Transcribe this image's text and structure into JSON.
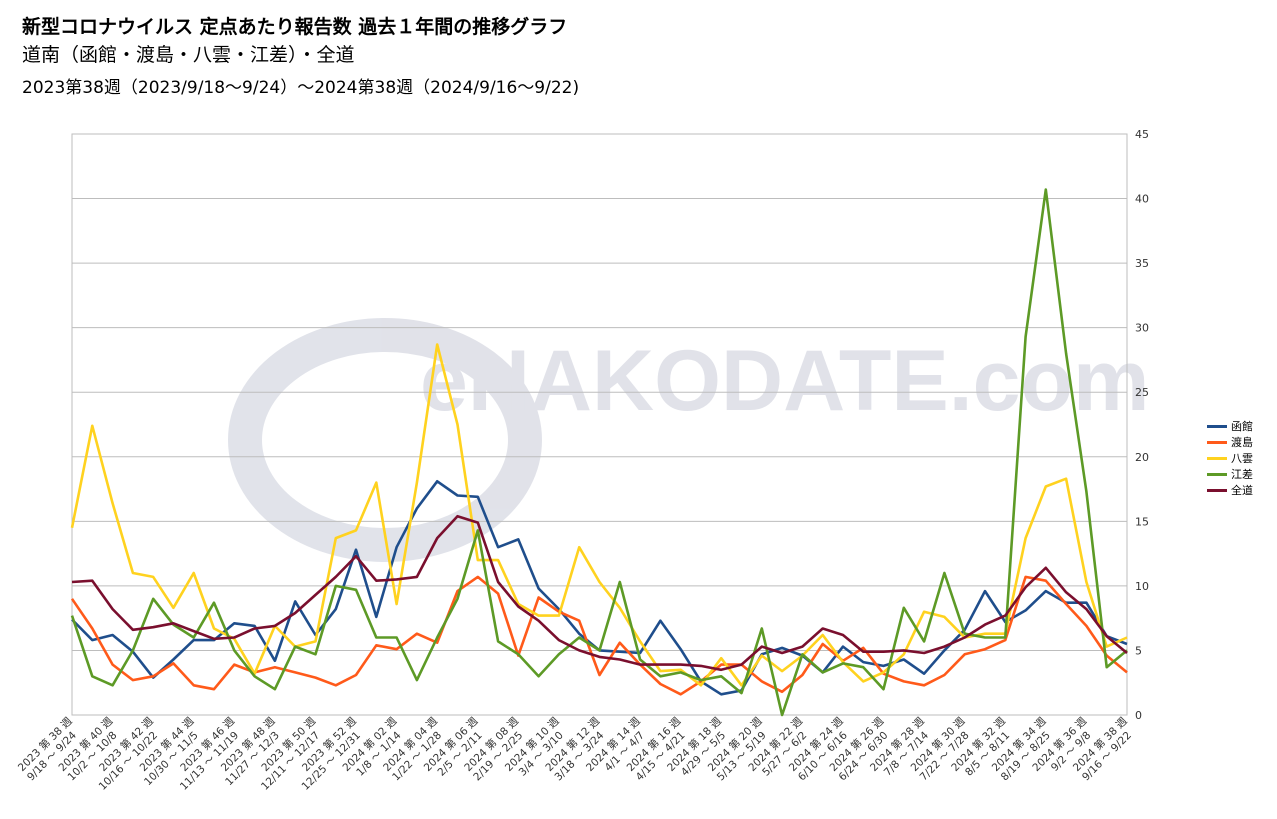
{
  "header": {
    "title": "新型コロナウイルス 定点あたり報告数 過去１年間の推移グラフ",
    "subtitle": "道南（函館・渡島・八雲・江差）・全道",
    "period": "2023第38週（2023/9/18〜9/24）〜2024第38週（2024/9/16〜9/22)"
  },
  "watermark": {
    "logo_text": "eHAKODATE.com",
    "colors": {
      "main": "#c9ccd8",
      "accent": "#f6c6a8"
    }
  },
  "chart_data": {
    "type": "line",
    "title": "新型コロナウイルス 定点あたり報告数 過去１年間の推移グラフ",
    "xlabel": "",
    "ylabel": "",
    "ylim": [
      0,
      45
    ],
    "y_ticks": [
      0,
      5,
      10,
      15,
      20,
      25,
      30,
      35,
      40,
      45
    ],
    "y_axis_side": "right",
    "grid": true,
    "legend_position": "right",
    "x_tick_labels": [
      [
        "2023 第 38 週",
        "9/18 〜 9/24"
      ],
      [
        "2023 第 40 週",
        "10/2 〜 10/8"
      ],
      [
        "2023 第 42 週",
        "10/16 〜 10/22"
      ],
      [
        "2023 第 44 週",
        "10/30 〜 11/5"
      ],
      [
        "2023 第 46 週",
        "11/13 〜 11/19"
      ],
      [
        "2023 第 48 週",
        "11/27 〜 12/3"
      ],
      [
        "2023 第 50 週",
        "12/11 〜 12/17"
      ],
      [
        "2023 第 52 週",
        "12/25 〜 12/31"
      ],
      [
        "2024 第 02 週",
        "1/8 〜 1/14"
      ],
      [
        "2024 第 04 週",
        "1/22 〜 1/28"
      ],
      [
        "2024 第 06 週",
        "2/5 〜 2/11"
      ],
      [
        "2024 第 08 週",
        "2/19 〜 2/25"
      ],
      [
        "2024 第 10 週",
        "3/4 〜 3/10"
      ],
      [
        "2024 第 12 週",
        "3/18 〜 3/24"
      ],
      [
        "2024 第 14 週",
        "4/1 〜 4/7"
      ],
      [
        "2024 第 16 週",
        "4/15 〜 4/21"
      ],
      [
        "2024 第 18 週",
        "4/29 〜 5/5"
      ],
      [
        "2024 第 20 週",
        "5/13 〜 5/19"
      ],
      [
        "2024 第 22 週",
        "5/27 〜 6/2"
      ],
      [
        "2024 第 24 週",
        "6/10 〜 6/16"
      ],
      [
        "2024 第 26 週",
        "6/24 〜 6/30"
      ],
      [
        "2024 第 28 週",
        "7/8 〜 7/14"
      ],
      [
        "2024 第 30 週",
        "7/22 〜 7/28"
      ],
      [
        "2024 第 32 週",
        "8/5 〜 8/11"
      ],
      [
        "2024 第 34 週",
        "8/19 〜 8/25"
      ],
      [
        "2024 第 36 週",
        "9/2 〜 9/8"
      ],
      [
        "2024 第 38 週",
        "9/16 〜 9/22"
      ]
    ],
    "series": [
      {
        "name": "函館",
        "color": "#1f4e8c",
        "values": [
          7.4,
          5.8,
          6.2,
          4.9,
          2.9,
          4.3,
          5.8,
          5.8,
          7.1,
          6.9,
          4.2,
          8.8,
          6.2,
          8.2,
          12.8,
          7.6,
          13.0,
          16.0,
          18.1,
          17.0,
          16.9,
          13.0,
          13.6,
          9.8,
          8.2,
          6.3,
          5.0,
          4.9,
          4.8,
          7.3,
          5.1,
          2.6,
          1.6,
          1.9,
          4.7,
          5.2,
          4.6,
          3.3,
          5.3,
          4.1,
          3.8,
          4.3,
          3.2,
          5.0,
          6.6,
          9.6,
          7.2,
          8.1,
          9.6,
          8.7,
          8.7,
          6.1,
          5.5
        ]
      },
      {
        "name": "渡島",
        "color": "#ff5a1a",
        "values": [
          9.0,
          6.7,
          3.9,
          2.7,
          3.0,
          4.0,
          2.3,
          2.0,
          3.9,
          3.3,
          3.7,
          3.3,
          2.9,
          2.3,
          3.1,
          5.4,
          5.1,
          6.3,
          5.6,
          9.6,
          10.7,
          9.4,
          4.6,
          9.1,
          8.0,
          7.3,
          3.1,
          5.6,
          3.9,
          2.4,
          1.6,
          2.6,
          3.9,
          3.9,
          2.6,
          1.8,
          3.1,
          5.5,
          4.2,
          5.2,
          3.2,
          2.6,
          2.3,
          3.1,
          4.7,
          5.1,
          5.8,
          10.7,
          10.4,
          8.6,
          6.9,
          4.6,
          3.3
        ]
      },
      {
        "name": "八雲",
        "color": "#ffd21f",
        "values": [
          14.5,
          22.4,
          16.4,
          11.0,
          10.7,
          8.3,
          11.0,
          6.7,
          5.9,
          3.2,
          6.9,
          5.3,
          5.7,
          13.7,
          14.3,
          18.0,
          8.6,
          18.0,
          28.7,
          22.5,
          12.0,
          12.0,
          8.6,
          7.7,
          7.7,
          13.0,
          10.3,
          8.3,
          5.7,
          3.4,
          3.5,
          2.3,
          4.4,
          2.3,
          4.6,
          3.4,
          4.6,
          6.2,
          4.1,
          2.6,
          3.3,
          4.7,
          8.0,
          7.6,
          6.0,
          6.3,
          6.3,
          13.7,
          17.7,
          18.3,
          10.3,
          5.3,
          6.0
        ]
      },
      {
        "name": "江差",
        "color": "#5d9a26",
        "values": [
          7.7,
          3.0,
          2.3,
          5.0,
          9.0,
          7.0,
          6.0,
          8.7,
          5.0,
          3.0,
          2.0,
          5.3,
          4.7,
          10.0,
          9.7,
          6.0,
          6.0,
          2.7,
          6.0,
          9.0,
          14.3,
          5.7,
          4.7,
          3.0,
          4.7,
          6.0,
          5.0,
          10.3,
          4.3,
          3.0,
          3.3,
          2.7,
          3.0,
          1.7,
          6.7,
          0.0,
          4.7,
          3.3,
          4.0,
          3.7,
          2.0,
          8.3,
          5.7,
          11.0,
          6.3,
          6.0,
          6.0,
          29.3,
          40.7,
          28.0,
          17.3,
          3.7,
          5.0
        ]
      },
      {
        "name": "全道",
        "color": "#7a0f2e",
        "values": [
          10.3,
          10.4,
          8.2,
          6.6,
          6.8,
          7.1,
          6.5,
          5.9,
          6.0,
          6.7,
          6.9,
          7.9,
          9.3,
          10.7,
          12.3,
          10.4,
          10.5,
          10.7,
          13.7,
          15.4,
          14.9,
          10.3,
          8.4,
          7.3,
          5.8,
          5.0,
          4.5,
          4.3,
          3.9,
          3.9,
          3.9,
          3.8,
          3.5,
          3.9,
          5.3,
          4.8,
          5.3,
          6.7,
          6.2,
          4.9,
          4.9,
          5.0,
          4.8,
          5.3,
          6.0,
          7.0,
          7.7,
          9.9,
          11.4,
          9.5,
          8.2,
          6.1,
          4.8
        ]
      }
    ]
  }
}
